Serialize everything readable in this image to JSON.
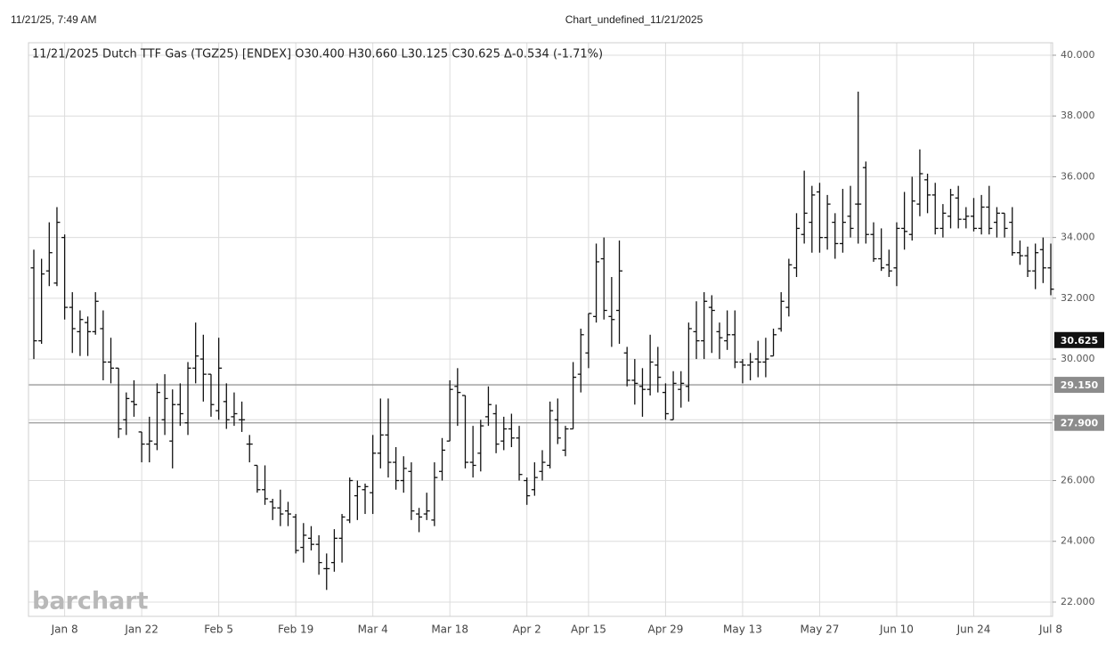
{
  "header": {
    "timestamp": "11/21/25, 7:49 AM",
    "page_title": "Chart_undefined_11/21/2025"
  },
  "chart_data": {
    "type": "ohlc",
    "title": "11/21/2025 Dutch TTF Gas (TGZ25) [ENDEX] O30.400 H30.660 L30.125 C30.625 Δ-0.534 (-1.71%)",
    "watermark": "barchart",
    "color": "#111111",
    "grid": true,
    "categories": [
      null,
      null,
      null,
      null,
      "Jan 8",
      null,
      null,
      null,
      null,
      null,
      null,
      null,
      null,
      null,
      "Jan 22",
      null,
      null,
      null,
      null,
      null,
      null,
      null,
      null,
      null,
      "Feb 5",
      null,
      null,
      null,
      null,
      null,
      null,
      null,
      null,
      null,
      "Feb 19",
      null,
      null,
      null,
      null,
      null,
      null,
      null,
      null,
      null,
      "Mar 4",
      null,
      null,
      null,
      null,
      null,
      null,
      null,
      null,
      null,
      "Mar 18",
      null,
      null,
      null,
      null,
      null,
      null,
      null,
      null,
      null,
      "Apr 2",
      null,
      null,
      null,
      null,
      null,
      null,
      null,
      "Apr 15",
      null,
      null,
      null,
      null,
      null,
      null,
      null,
      null,
      null,
      "Apr 29",
      null,
      null,
      null,
      null,
      null,
      null,
      null,
      null,
      null,
      "May 13",
      null,
      null,
      null,
      null,
      null,
      null,
      null,
      null,
      null,
      "May 27",
      null,
      null,
      null,
      null,
      null,
      null,
      null,
      null,
      null,
      "Jun 10",
      null,
      null,
      null,
      null,
      null,
      null,
      null,
      null,
      null,
      "Jun 24",
      null,
      null,
      null,
      null,
      null,
      null,
      null,
      null,
      null,
      "Jul 8"
    ],
    "open": [
      33.0,
      30.6,
      32.9,
      32.5,
      34.0,
      31.7,
      30.9,
      31.2,
      30.9,
      31.0,
      29.9,
      29.7,
      28.0,
      28.6,
      27.6,
      27.2,
      27.2,
      28.0,
      27.3,
      28.5,
      27.9,
      29.7,
      30.0,
      29.5,
      28.3,
      28.6,
      28.1,
      28.0,
      27.2,
      26.5,
      25.7,
      25.3,
      25.1,
      25.0,
      24.8,
      23.8,
      24.1,
      23.9,
      23.1,
      23.3,
      24.1,
      24.7,
      25.5,
      25.7,
      25.6,
      26.9,
      27.5,
      26.6,
      26.0,
      26.3,
      24.9,
      24.9,
      24.7,
      26.3,
      27.3,
      29.1,
      28.8,
      26.6,
      26.9,
      28.1,
      28.2,
      27.3,
      27.7,
      27.4,
      26.0,
      25.7,
      26.3,
      26.5,
      28.0,
      27.0,
      27.7,
      29.5,
      30.2,
      31.4,
      33.3,
      31.4,
      31.6,
      30.2,
      29.3,
      29.1,
      29.0,
      29.8,
      28.9,
      28.0,
      29.0,
      29.1,
      30.9,
      30.6,
      31.7,
      30.9,
      30.6,
      30.8,
      29.9,
      29.8,
      30.0,
      29.9,
      30.1,
      31.0,
      31.7,
      33.0,
      34.1,
      34.5,
      35.5,
      34.0,
      34.5,
      33.8,
      34.7,
      35.1,
      36.3,
      34.1,
      33.3,
      33.1,
      33.0,
      34.3,
      34.1,
      35.1,
      35.9,
      35.4,
      34.3,
      34.7,
      35.3,
      34.6,
      34.7,
      34.3,
      35.0,
      34.5,
      34.8,
      34.5,
      33.5,
      33.4,
      32.9,
      33.6,
      33.0
    ],
    "high": [
      33.6,
      33.3,
      34.5,
      35.0,
      34.1,
      32.2,
      31.6,
      31.4,
      32.2,
      31.6,
      30.7,
      29.7,
      28.9,
      29.3,
      27.6,
      28.1,
      29.2,
      29.5,
      29.0,
      29.2,
      29.9,
      31.2,
      30.8,
      29.5,
      30.7,
      29.2,
      28.9,
      28.6,
      27.5,
      26.5,
      26.5,
      25.4,
      25.7,
      25.3,
      24.9,
      24.6,
      24.5,
      24.2,
      23.6,
      24.4,
      24.9,
      26.1,
      26.0,
      25.9,
      27.5,
      28.7,
      28.7,
      27.1,
      26.8,
      26.6,
      25.1,
      25.6,
      26.6,
      27.4,
      29.3,
      29.7,
      28.8,
      27.8,
      28.0,
      29.1,
      28.5,
      28.1,
      28.2,
      27.8,
      26.1,
      26.6,
      27.0,
      28.6,
      28.7,
      27.8,
      29.9,
      31.0,
      31.5,
      33.8,
      34.0,
      32.7,
      33.9,
      30.4,
      30.0,
      29.7,
      30.8,
      30.4,
      29.2,
      29.6,
      29.6,
      31.2,
      31.9,
      32.2,
      32.1,
      31.2,
      31.6,
      31.6,
      30.0,
      30.2,
      30.6,
      30.7,
      31.0,
      32.2,
      33.3,
      34.8,
      36.2,
      35.7,
      35.8,
      35.4,
      34.8,
      35.6,
      35.7,
      38.8,
      36.5,
      34.5,
      34.3,
      33.6,
      34.5,
      35.5,
      36.0,
      36.9,
      36.1,
      35.8,
      35.1,
      35.6,
      35.7,
      35.0,
      35.3,
      35.4,
      35.7,
      35.0,
      34.8,
      35.0,
      33.9,
      33.7,
      33.8,
      34.0,
      33.8
    ],
    "low": [
      30.0,
      30.5,
      32.4,
      32.4,
      31.3,
      30.2,
      30.1,
      30.1,
      30.8,
      29.3,
      29.2,
      27.4,
      27.5,
      28.1,
      26.6,
      26.6,
      27.0,
      27.5,
      26.4,
      27.8,
      27.5,
      29.2,
      28.6,
      28.1,
      28.0,
      27.7,
      27.8,
      27.6,
      26.6,
      25.6,
      25.2,
      24.7,
      24.5,
      24.5,
      23.6,
      23.3,
      23.7,
      22.9,
      22.4,
      23.0,
      23.3,
      24.6,
      24.7,
      24.9,
      24.9,
      26.4,
      26.1,
      25.7,
      25.6,
      24.7,
      24.3,
      24.7,
      24.5,
      26.0,
      27.3,
      27.8,
      26.4,
      26.1,
      26.3,
      27.8,
      26.9,
      27.0,
      27.1,
      26.0,
      25.2,
      25.5,
      26.0,
      26.4,
      27.2,
      26.8,
      27.7,
      28.9,
      29.7,
      31.2,
      31.3,
      30.4,
      30.5,
      29.1,
      28.5,
      28.1,
      28.8,
      28.9,
      28.0,
      28.0,
      28.4,
      28.6,
      30.0,
      30.0,
      30.2,
      30.0,
      30.3,
      29.7,
      29.2,
      29.3,
      29.4,
      29.4,
      30.1,
      30.9,
      31.4,
      32.7,
      33.8,
      33.5,
      33.5,
      33.6,
      33.3,
      33.5,
      34.0,
      33.8,
      33.8,
      33.2,
      32.9,
      32.7,
      32.4,
      33.6,
      33.9,
      34.7,
      34.8,
      34.1,
      34.0,
      34.3,
      34.3,
      34.3,
      34.2,
      34.1,
      34.1,
      34.0,
      34.0,
      33.4,
      33.1,
      32.7,
      32.3,
      32.5,
      32.1
    ],
    "close": [
      30.6,
      32.8,
      33.5,
      34.5,
      31.7,
      31.0,
      31.3,
      30.9,
      31.9,
      29.9,
      29.7,
      27.7,
      28.7,
      28.5,
      27.2,
      27.3,
      28.9,
      28.7,
      28.5,
      28.2,
      29.7,
      30.1,
      29.5,
      28.5,
      29.7,
      28.0,
      28.2,
      28.0,
      27.2,
      25.7,
      25.4,
      25.1,
      24.9,
      24.9,
      23.7,
      24.2,
      23.9,
      23.3,
      23.1,
      24.1,
      24.8,
      26.0,
      25.8,
      25.8,
      26.9,
      27.5,
      26.6,
      26.0,
      26.4,
      25.0,
      24.8,
      25.0,
      26.1,
      27.0,
      29.0,
      28.9,
      26.6,
      26.5,
      27.8,
      28.5,
      27.2,
      27.7,
      27.4,
      26.2,
      25.5,
      26.1,
      26.6,
      28.3,
      27.4,
      27.7,
      29.4,
      30.8,
      31.5,
      33.2,
      31.6,
      31.3,
      32.9,
      29.3,
      29.2,
      29.0,
      29.9,
      29.4,
      28.2,
      29.2,
      29.2,
      31.0,
      30.6,
      31.9,
      31.6,
      30.7,
      30.8,
      29.9,
      29.8,
      29.9,
      29.9,
      30.0,
      30.8,
      31.9,
      33.1,
      34.3,
      34.8,
      35.4,
      34.0,
      35.1,
      33.8,
      34.5,
      34.3,
      35.1,
      34.1,
      33.3,
      33.0,
      32.9,
      34.3,
      34.2,
      35.2,
      36.1,
      35.4,
      34.3,
      34.8,
      35.4,
      34.6,
      34.7,
      34.3,
      35.0,
      34.3,
      34.8,
      34.3,
      33.5,
      33.4,
      32.9,
      33.5,
      33.0,
      32.3
    ],
    "ylim": [
      21.53,
      40.41
    ],
    "yticks": [
      {
        "value": 22,
        "label": "22.000"
      },
      {
        "value": 24,
        "label": "24.000"
      },
      {
        "value": 26,
        "label": "26.000"
      },
      {
        "value": 28,
        "label": "28.000"
      },
      {
        "value": 30,
        "label": "30.000"
      },
      {
        "value": 32,
        "label": "32.000"
      },
      {
        "value": 34,
        "label": "34.000"
      },
      {
        "value": 36,
        "label": "36.000"
      },
      {
        "value": 38,
        "label": "38.000"
      },
      {
        "value": 40,
        "label": "40.000"
      }
    ],
    "price_lines": [
      {
        "value": 29.15,
        "label": "29.150"
      },
      {
        "value": 27.9,
        "label": "27.900"
      }
    ],
    "last_price": {
      "value": 30.625,
      "label": "30.625"
    }
  }
}
